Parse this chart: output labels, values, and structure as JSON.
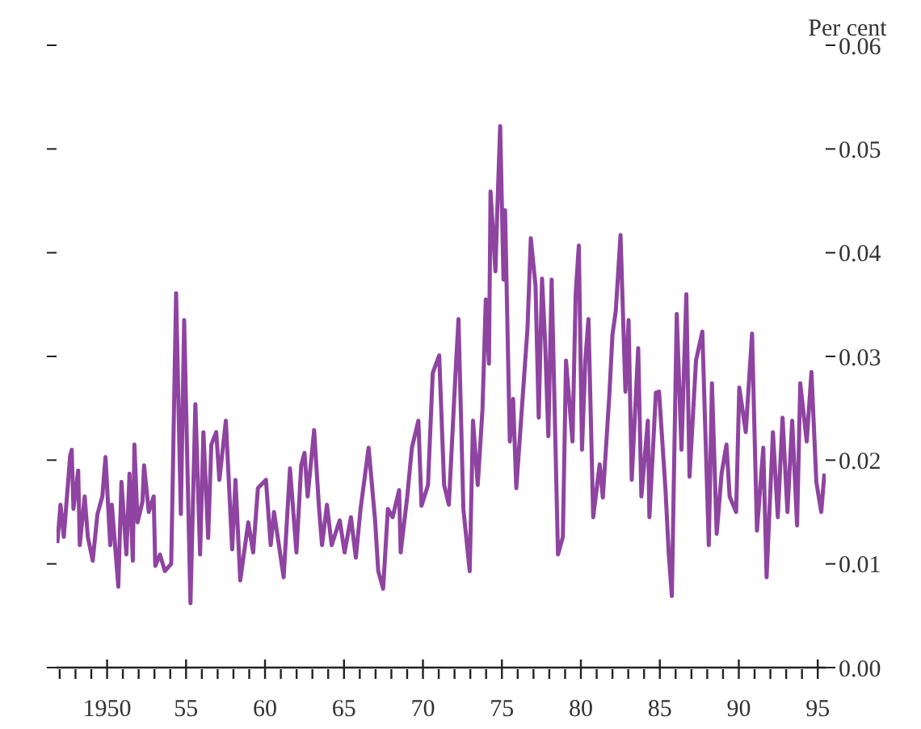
{
  "chart_data": {
    "type": "line",
    "ylabel": "Per cent",
    "x": [
      1946.85,
      1947.05,
      1947.26,
      1947.66,
      1947.76,
      1947.87,
      1948.17,
      1948.27,
      1948.58,
      1948.78,
      1949.09,
      1949.39,
      1949.7,
      1949.9,
      1950.2,
      1950.3,
      1950.71,
      1950.91,
      1951.22,
      1951.42,
      1951.63,
      1951.73,
      1951.93,
      1952.24,
      1952.34,
      1952.64,
      1952.95,
      1953.05,
      1953.35,
      1953.66,
      1954.06,
      1954.37,
      1954.67,
      1954.88,
      1955.28,
      1955.59,
      1955.89,
      1956.1,
      1956.4,
      1956.6,
      1956.91,
      1957.11,
      1957.52,
      1957.92,
      1958.13,
      1958.43,
      1958.94,
      1959.25,
      1959.55,
      1960.06,
      1960.36,
      1960.57,
      1961.18,
      1961.58,
      1961.99,
      1962.29,
      1962.5,
      1962.7,
      1963.11,
      1963.41,
      1963.61,
      1963.92,
      1964.22,
      1964.73,
      1965.04,
      1965.44,
      1965.75,
      1966.05,
      1966.56,
      1966.97,
      1967.17,
      1967.48,
      1967.78,
      1968.08,
      1968.49,
      1968.59,
      1969.0,
      1969.3,
      1969.71,
      1969.91,
      1970.32,
      1970.62,
      1971.03,
      1971.34,
      1971.64,
      1972.05,
      1972.25,
      1972.56,
      1972.96,
      1973.17,
      1973.47,
      1973.77,
      1973.98,
      1974.18,
      1974.28,
      1974.59,
      1974.69,
      1974.89,
      1975.1,
      1975.2,
      1975.5,
      1975.71,
      1975.91,
      1976.21,
      1976.62,
      1976.83,
      1977.13,
      1977.33,
      1977.54,
      1977.74,
      1977.94,
      1978.15,
      1978.55,
      1978.86,
      1979.06,
      1979.47,
      1979.67,
      1979.87,
      1980.07,
      1980.28,
      1980.48,
      1980.78,
      1981.19,
      1981.39,
      1981.8,
      1982.0,
      1982.21,
      1982.51,
      1982.82,
      1983.02,
      1983.22,
      1983.63,
      1983.83,
      1984.24,
      1984.34,
      1984.75,
      1984.95,
      1985.36,
      1985.56,
      1985.76,
      1986.07,
      1986.37,
      1986.68,
      1986.88,
      1987.29,
      1987.69,
      1988.1,
      1988.3,
      1988.6,
      1988.91,
      1989.22,
      1989.42,
      1989.83,
      1990.03,
      1990.44,
      1990.84,
      1991.15,
      1991.55,
      1991.76,
      1992.16,
      1992.47,
      1992.77,
      1993.08,
      1993.38,
      1993.69,
      1993.89,
      1994.3,
      1994.6,
      1994.91,
      1995.22,
      1995.42
    ],
    "series": [
      {
        "color": "#8e44a0",
        "values": [
          0.012,
          0.0157,
          0.0126,
          0.0204,
          0.021,
          0.0153,
          0.019,
          0.0118,
          0.0165,
          0.0126,
          0.0103,
          0.0148,
          0.0165,
          0.0203,
          0.0118,
          0.0157,
          0.0078,
          0.0179,
          0.0109,
          0.0187,
          0.0103,
          0.0215,
          0.014,
          0.016,
          0.0195,
          0.015,
          0.0165,
          0.0098,
          0.0109,
          0.0093,
          0.01,
          0.0361,
          0.0148,
          0.0335,
          0.0062,
          0.0254,
          0.0109,
          0.0227,
          0.0125,
          0.0215,
          0.0227,
          0.0181,
          0.0238,
          0.0114,
          0.0181,
          0.0084,
          0.014,
          0.0111,
          0.0173,
          0.0181,
          0.0118,
          0.015,
          0.0087,
          0.0192,
          0.0111,
          0.0195,
          0.0207,
          0.0165,
          0.0229,
          0.0156,
          0.0118,
          0.0157,
          0.0118,
          0.0142,
          0.0111,
          0.0145,
          0.0106,
          0.0153,
          0.0212,
          0.0142,
          0.0093,
          0.0076,
          0.0153,
          0.0145,
          0.0171,
          0.0111,
          0.0164,
          0.0212,
          0.0238,
          0.0156,
          0.0176,
          0.0284,
          0.0301,
          0.0176,
          0.0157,
          0.028,
          0.0336,
          0.0153,
          0.0093,
          0.0238,
          0.0176,
          0.0249,
          0.0355,
          0.0293,
          0.0459,
          0.0382,
          0.0433,
          0.0522,
          0.0374,
          0.0441,
          0.0218,
          0.0259,
          0.0173,
          0.0238,
          0.0327,
          0.0414,
          0.0368,
          0.0241,
          0.0375,
          0.0312,
          0.0223,
          0.0374,
          0.0109,
          0.0126,
          0.0296,
          0.0218,
          0.036,
          0.0407,
          0.021,
          0.0296,
          0.0336,
          0.0145,
          0.0196,
          0.0164,
          0.0262,
          0.0321,
          0.0344,
          0.0417,
          0.0266,
          0.0335,
          0.0181,
          0.0308,
          0.0165,
          0.0238,
          0.0145,
          0.0265,
          0.0266,
          0.0171,
          0.0111,
          0.0069,
          0.0341,
          0.021,
          0.036,
          0.0184,
          0.0296,
          0.0324,
          0.0118,
          0.0274,
          0.0129,
          0.0187,
          0.0215,
          0.0165,
          0.015,
          0.027,
          0.0227,
          0.0322,
          0.0132,
          0.0212,
          0.0087,
          0.0227,
          0.0145,
          0.0241,
          0.015,
          0.0238,
          0.0137,
          0.0274,
          0.0218,
          0.0285,
          0.0179,
          0.015,
          0.0187
        ]
      }
    ],
    "xlim": [
      1946.8,
      1995.5
    ],
    "xticks": [
      {
        "value": 1947,
        "label": null
      },
      {
        "value": 1948,
        "label": null
      },
      {
        "value": 1949,
        "label": null
      },
      {
        "value": 1950,
        "label": "1950"
      },
      {
        "value": 1951,
        "label": null
      },
      {
        "value": 1952,
        "label": null
      },
      {
        "value": 1953,
        "label": null
      },
      {
        "value": 1954,
        "label": null
      },
      {
        "value": 1955,
        "label": "55"
      },
      {
        "value": 1956,
        "label": null
      },
      {
        "value": 1957,
        "label": null
      },
      {
        "value": 1958,
        "label": null
      },
      {
        "value": 1959,
        "label": null
      },
      {
        "value": 1960,
        "label": "60"
      },
      {
        "value": 1961,
        "label": null
      },
      {
        "value": 1962,
        "label": null
      },
      {
        "value": 1963,
        "label": null
      },
      {
        "value": 1964,
        "label": null
      },
      {
        "value": 1965,
        "label": "65"
      },
      {
        "value": 1966,
        "label": null
      },
      {
        "value": 1967,
        "label": null
      },
      {
        "value": 1968,
        "label": null
      },
      {
        "value": 1969,
        "label": null
      },
      {
        "value": 1970,
        "label": "70"
      },
      {
        "value": 1971,
        "label": null
      },
      {
        "value": 1972,
        "label": null
      },
      {
        "value": 1973,
        "label": null
      },
      {
        "value": 1974,
        "label": null
      },
      {
        "value": 1975,
        "label": "75"
      },
      {
        "value": 1976,
        "label": null
      },
      {
        "value": 1977,
        "label": null
      },
      {
        "value": 1978,
        "label": null
      },
      {
        "value": 1979,
        "label": null
      },
      {
        "value": 1980,
        "label": "80"
      },
      {
        "value": 1981,
        "label": null
      },
      {
        "value": 1982,
        "label": null
      },
      {
        "value": 1983,
        "label": null
      },
      {
        "value": 1984,
        "label": null
      },
      {
        "value": 1985,
        "label": "85"
      },
      {
        "value": 1986,
        "label": null
      },
      {
        "value": 1987,
        "label": null
      },
      {
        "value": 1988,
        "label": null
      },
      {
        "value": 1989,
        "label": null
      },
      {
        "value": 1990,
        "label": "90"
      },
      {
        "value": 1991,
        "label": null
      },
      {
        "value": 1992,
        "label": null
      },
      {
        "value": 1993,
        "label": null
      },
      {
        "value": 1994,
        "label": null
      },
      {
        "value": 1995,
        "label": "95"
      }
    ],
    "ylim": [
      0,
      0.06
    ],
    "yticks": [
      {
        "value": 0,
        "label": "0.00"
      },
      {
        "value": 0.01,
        "label": "0.01"
      },
      {
        "value": 0.02,
        "label": "0.02"
      },
      {
        "value": 0.03,
        "label": "0.03"
      },
      {
        "value": 0.04,
        "label": "0.04"
      },
      {
        "value": 0.05,
        "label": "0.05"
      },
      {
        "value": 0.06,
        "label": "0.06"
      }
    ],
    "grid": false,
    "legend": false,
    "marker": "none",
    "line_style": "solid"
  }
}
